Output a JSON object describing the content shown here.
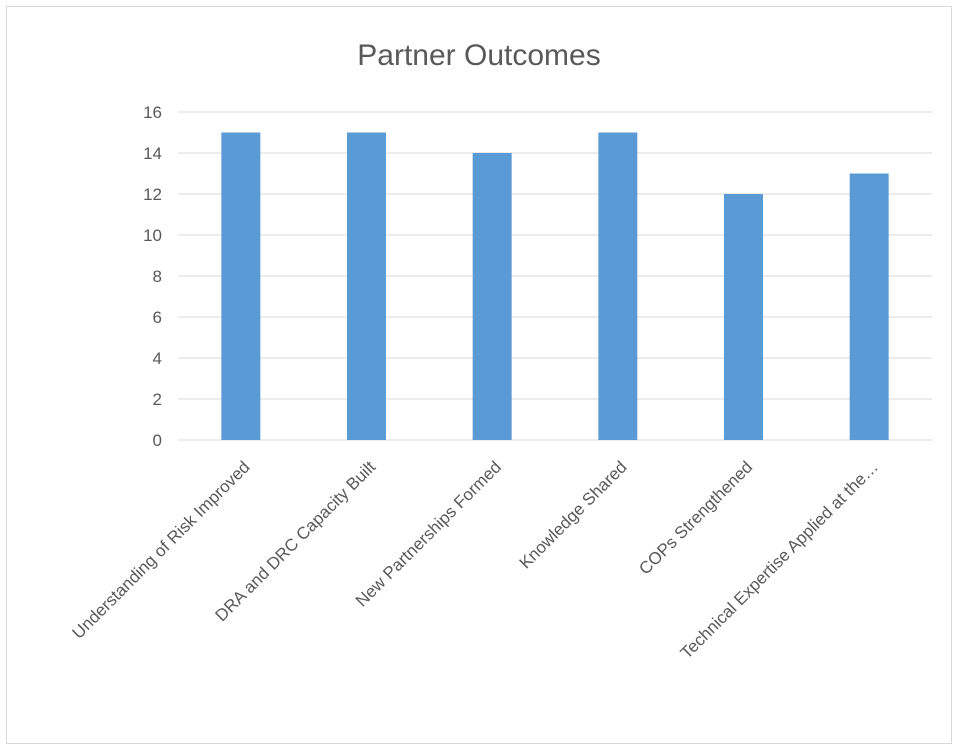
{
  "chart_data": {
    "type": "bar",
    "title": "Partner Outcomes",
    "xlabel": "",
    "ylabel": "",
    "categories": [
      "Understanding of Risk Improved",
      "DRA and DRC Capacity Built",
      "New Partnerships Formed",
      "Knowledge Shared",
      "COPs Strengthened",
      "Technical Expertise Applied at the…"
    ],
    "values": [
      15,
      15,
      14,
      15,
      12,
      13
    ],
    "ylim": [
      0,
      16
    ],
    "yticks": [
      0,
      2,
      4,
      6,
      8,
      10,
      12,
      14,
      16
    ],
    "grid": true,
    "legend": "none",
    "colors": {
      "bar": "#5b9bd5",
      "grid": "#d9d9d9",
      "text": "#595959"
    }
  }
}
